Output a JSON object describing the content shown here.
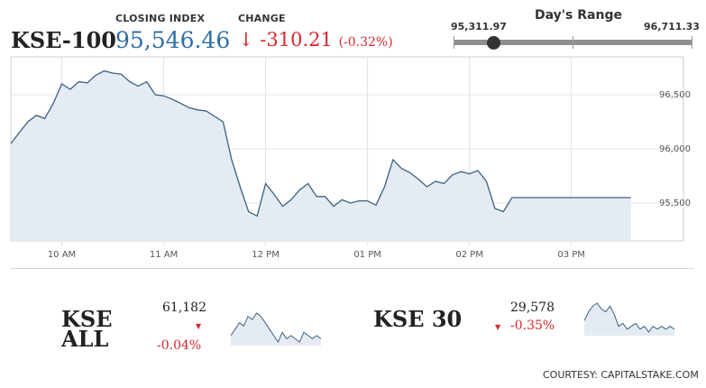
{
  "header": {
    "index_name": "KSE-100",
    "closing_label": "CLOSING INDEX",
    "closing_value": "95,546.46",
    "change_label": "CHANGE",
    "change_arrow": "↓",
    "change_value": "-310.21",
    "change_pct": "(-0.32%)",
    "range_title": "Day's Range",
    "range_low": "95,311.97",
    "range_high": "96,711.33",
    "range_low_value": 95311.97,
    "range_high_value": 96711.33,
    "current_value": 95546.46
  },
  "colors": {
    "accent_blue": "#2f6fa6",
    "negative_red": "#d6262d",
    "line": "#3b5f80",
    "area": "#e4ebf2"
  },
  "chart_data": [
    {
      "type": "area",
      "title": "",
      "x_ticks": [
        "10 AM",
        "11 AM",
        "12 PM",
        "01 PM",
        "02 PM",
        "03 PM"
      ],
      "y_ticks": [
        95500,
        96000,
        96500
      ],
      "y_tick_labels": [
        "95,500",
        "96,000",
        "96,500"
      ],
      "ylim": [
        95150,
        96850
      ],
      "grid": true,
      "x": [
        9.5,
        9.583,
        9.667,
        9.75,
        9.833,
        9.917,
        10.0,
        10.083,
        10.167,
        10.25,
        10.333,
        10.417,
        10.5,
        10.583,
        10.667,
        10.75,
        10.833,
        10.917,
        11.0,
        11.083,
        11.167,
        11.25,
        11.333,
        11.417,
        11.5,
        11.583,
        11.667,
        11.75,
        11.833,
        11.917,
        12.0,
        12.083,
        12.167,
        12.25,
        12.333,
        12.417,
        12.5,
        12.583,
        12.667,
        12.75,
        12.833,
        12.917,
        13.0,
        13.083,
        13.167,
        13.25,
        13.333,
        13.417,
        13.5,
        13.583,
        13.667,
        13.75,
        13.833,
        13.917,
        14.0,
        14.083,
        14.167,
        14.25,
        14.333,
        14.417,
        14.5,
        14.583,
        14.667,
        14.75,
        14.833,
        14.917,
        15.0,
        15.083,
        15.167,
        15.25,
        15.333,
        15.417,
        15.5,
        15.583
      ],
      "y": [
        96050,
        96150,
        96250,
        96310,
        96280,
        96420,
        96600,
        96550,
        96620,
        96610,
        96680,
        96720,
        96700,
        96690,
        96620,
        96580,
        96620,
        96500,
        96490,
        96460,
        96420,
        96380,
        96360,
        96350,
        96300,
        96250,
        95900,
        95650,
        95420,
        95380,
        95680,
        95580,
        95470,
        95530,
        95620,
        95680,
        95560,
        95560,
        95470,
        95530,
        95500,
        95520,
        95520,
        95480,
        95650,
        95900,
        95820,
        95780,
        95720,
        95650,
        95700,
        95680,
        95760,
        95790,
        95770,
        95800,
        95700,
        95450,
        95420,
        95550,
        95550,
        95550,
        95550,
        95550,
        95550,
        95550,
        95550,
        95550,
        95550,
        95550,
        95550,
        95550,
        95550,
        95550
      ]
    },
    {
      "type": "area",
      "name": "KSE ALL",
      "display_name": "KSE\nALL",
      "value_label": "61,182",
      "change_label": "-0.04%",
      "y": [
        5,
        7,
        9,
        8,
        11,
        10,
        12,
        11,
        9,
        7,
        5,
        3,
        6,
        4,
        5,
        4,
        3,
        6,
        5,
        4,
        5,
        4
      ]
    },
    {
      "type": "area",
      "name": "KSE 30",
      "display_name": "KSE 30",
      "value_label": "29,578",
      "change_label": "-0.35%",
      "y": [
        6,
        9,
        11,
        12,
        10,
        9,
        11,
        8,
        4,
        5,
        3,
        4,
        5,
        3,
        4,
        2,
        4,
        3,
        4,
        3,
        4,
        3
      ]
    }
  ],
  "footer": {
    "courtesy": "COURTESY: CAPITALSTAKE.COM"
  }
}
